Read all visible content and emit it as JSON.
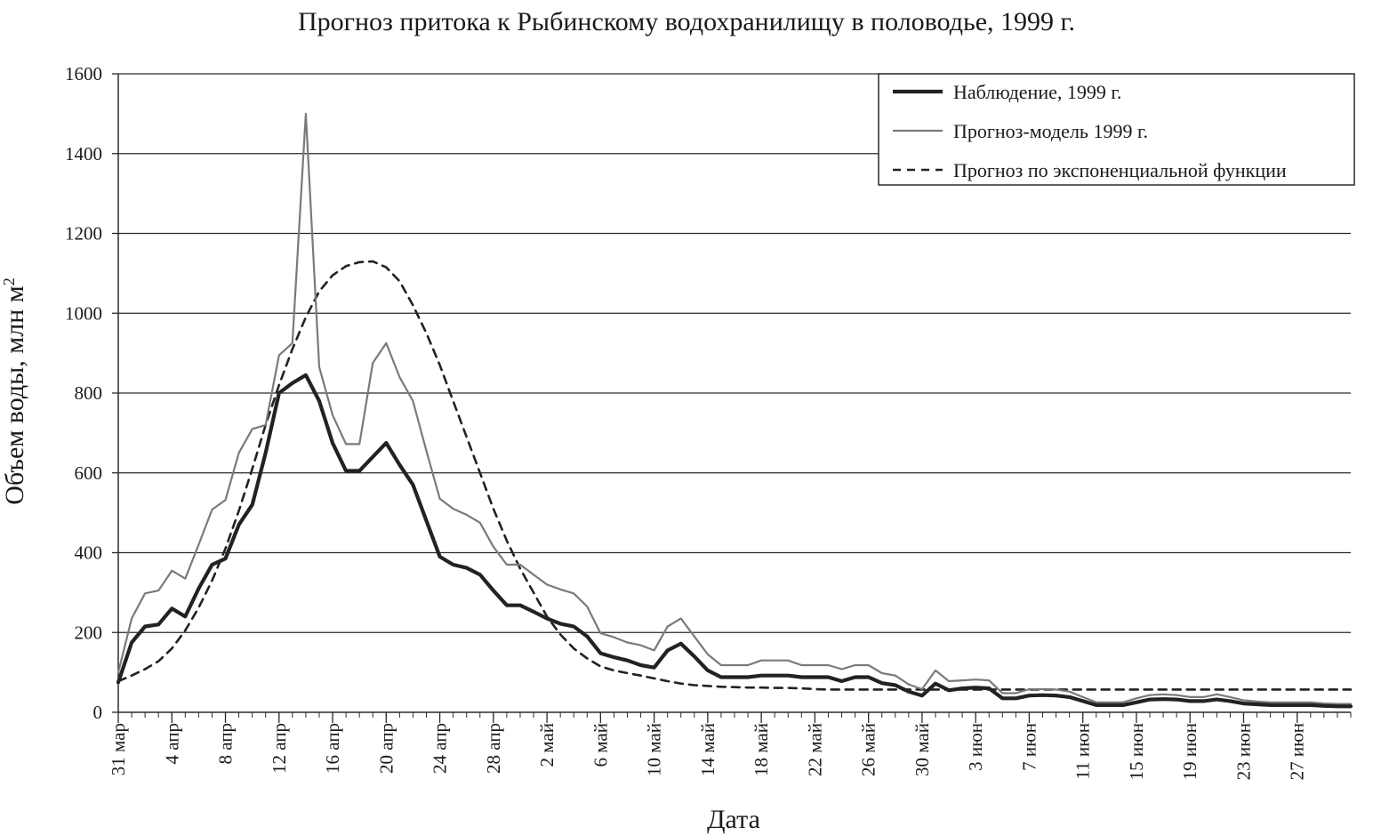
{
  "chart_data": {
    "type": "line",
    "title": "Прогноз притока к Рыбинскому водохранилищу в половодье, 1999 г.",
    "xlabel": "Дата",
    "ylabel": "Объем воды, млн м",
    "ylabel_superscript": "2",
    "ylim": [
      0,
      1600
    ],
    "yticks": [
      0,
      200,
      400,
      600,
      800,
      1000,
      1200,
      1400,
      1600
    ],
    "x_range_days": [
      0,
      92
    ],
    "x_tick_labels": [
      "31 мар",
      "4 апр",
      "8 апр",
      "12 апр",
      "16 апр",
      "20 апр",
      "24 апр",
      "28 апр",
      "2 май",
      "6 май",
      "10 май",
      "14 май",
      "18 май",
      "22 май",
      "26 май",
      "30 май",
      "3 июн",
      "7 июн",
      "11 июн",
      "15 июн",
      "19 июн",
      "23 июн",
      "27 июн"
    ],
    "x_tick_days": [
      0,
      4,
      8,
      12,
      16,
      20,
      24,
      28,
      32,
      36,
      40,
      44,
      48,
      52,
      56,
      60,
      64,
      68,
      72,
      76,
      80,
      84,
      88
    ],
    "grid": "horizontal",
    "legend_position": "top-right",
    "series": [
      {
        "name": "Наблюдение, 1999 г.",
        "color": "#222222",
        "style": "thick",
        "points": [
          [
            0,
            75
          ],
          [
            1,
            175
          ],
          [
            2,
            215
          ],
          [
            3,
            220
          ],
          [
            4,
            260
          ],
          [
            5,
            240
          ],
          [
            6,
            310
          ],
          [
            7,
            370
          ],
          [
            8,
            385
          ],
          [
            9,
            470
          ],
          [
            10,
            520
          ],
          [
            11,
            650
          ],
          [
            12,
            800
          ],
          [
            13,
            825
          ],
          [
            14,
            845
          ],
          [
            15,
            780
          ],
          [
            16,
            675
          ],
          [
            17,
            605
          ],
          [
            18,
            605
          ],
          [
            19,
            640
          ],
          [
            20,
            675
          ],
          [
            21,
            620
          ],
          [
            22,
            570
          ],
          [
            23,
            480
          ],
          [
            24,
            390
          ],
          [
            25,
            370
          ],
          [
            26,
            362
          ],
          [
            27,
            345
          ],
          [
            28,
            305
          ],
          [
            29,
            268
          ],
          [
            30,
            268
          ],
          [
            31,
            252
          ],
          [
            32,
            235
          ],
          [
            33,
            222
          ],
          [
            34,
            215
          ],
          [
            35,
            190
          ],
          [
            36,
            148
          ],
          [
            37,
            138
          ],
          [
            38,
            130
          ],
          [
            39,
            118
          ],
          [
            40,
            112
          ],
          [
            41,
            155
          ],
          [
            42,
            172
          ],
          [
            43,
            140
          ],
          [
            44,
            105
          ],
          [
            45,
            88
          ],
          [
            46,
            88
          ],
          [
            47,
            88
          ],
          [
            48,
            92
          ],
          [
            49,
            92
          ],
          [
            50,
            92
          ],
          [
            51,
            88
          ],
          [
            52,
            88
          ],
          [
            53,
            88
          ],
          [
            54,
            78
          ],
          [
            55,
            88
          ],
          [
            56,
            88
          ],
          [
            57,
            73
          ],
          [
            58,
            68
          ],
          [
            59,
            52
          ],
          [
            60,
            42
          ],
          [
            61,
            72
          ],
          [
            62,
            55
          ],
          [
            63,
            60
          ],
          [
            64,
            62
          ],
          [
            65,
            60
          ],
          [
            66,
            35
          ],
          [
            67,
            35
          ],
          [
            68,
            42
          ],
          [
            69,
            43
          ],
          [
            70,
            42
          ],
          [
            71,
            38
          ],
          [
            72,
            28
          ],
          [
            73,
            18
          ],
          [
            74,
            18
          ],
          [
            75,
            18
          ],
          [
            76,
            25
          ],
          [
            77,
            32
          ],
          [
            78,
            33
          ],
          [
            79,
            32
          ],
          [
            80,
            28
          ],
          [
            81,
            28
          ],
          [
            82,
            32
          ],
          [
            83,
            28
          ],
          [
            84,
            22
          ],
          [
            85,
            20
          ],
          [
            86,
            18
          ],
          [
            87,
            18
          ],
          [
            88,
            18
          ],
          [
            89,
            18
          ],
          [
            90,
            16
          ],
          [
            91,
            15
          ],
          [
            92,
            15
          ]
        ]
      },
      {
        "name": "Прогноз-модель 1999 г.",
        "color": "#7a7a7a",
        "style": "thin",
        "points": [
          [
            0,
            100
          ],
          [
            1,
            235
          ],
          [
            2,
            298
          ],
          [
            3,
            305
          ],
          [
            4,
            355
          ],
          [
            5,
            335
          ],
          [
            6,
            420
          ],
          [
            7,
            508
          ],
          [
            8,
            532
          ],
          [
            9,
            650
          ],
          [
            10,
            710
          ],
          [
            11,
            720
          ],
          [
            12,
            895
          ],
          [
            13,
            925
          ],
          [
            14,
            1500
          ],
          [
            15,
            865
          ],
          [
            16,
            745
          ],
          [
            17,
            672
          ],
          [
            18,
            672
          ],
          [
            19,
            875
          ],
          [
            20,
            925
          ],
          [
            21,
            840
          ],
          [
            22,
            780
          ],
          [
            23,
            655
          ],
          [
            24,
            535
          ],
          [
            25,
            510
          ],
          [
            26,
            495
          ],
          [
            27,
            475
          ],
          [
            28,
            415
          ],
          [
            29,
            370
          ],
          [
            30,
            370
          ],
          [
            31,
            345
          ],
          [
            32,
            320
          ],
          [
            33,
            308
          ],
          [
            34,
            298
          ],
          [
            35,
            265
          ],
          [
            36,
            198
          ],
          [
            37,
            188
          ],
          [
            38,
            175
          ],
          [
            39,
            168
          ],
          [
            40,
            155
          ],
          [
            41,
            215
          ],
          [
            42,
            235
          ],
          [
            43,
            190
          ],
          [
            44,
            145
          ],
          [
            45,
            118
          ],
          [
            46,
            118
          ],
          [
            47,
            118
          ],
          [
            48,
            130
          ],
          [
            49,
            130
          ],
          [
            50,
            130
          ],
          [
            51,
            118
          ],
          [
            52,
            118
          ],
          [
            53,
            118
          ],
          [
            54,
            108
          ],
          [
            55,
            118
          ],
          [
            56,
            118
          ],
          [
            57,
            98
          ],
          [
            58,
            92
          ],
          [
            59,
            70
          ],
          [
            60,
            58
          ],
          [
            61,
            105
          ],
          [
            62,
            78
          ],
          [
            63,
            80
          ],
          [
            64,
            82
          ],
          [
            65,
            80
          ],
          [
            66,
            48
          ],
          [
            67,
            48
          ],
          [
            68,
            58
          ],
          [
            69,
            58
          ],
          [
            70,
            57
          ],
          [
            71,
            52
          ],
          [
            72,
            38
          ],
          [
            73,
            25
          ],
          [
            74,
            25
          ],
          [
            75,
            25
          ],
          [
            76,
            35
          ],
          [
            77,
            43
          ],
          [
            78,
            45
          ],
          [
            79,
            43
          ],
          [
            80,
            38
          ],
          [
            81,
            38
          ],
          [
            82,
            45
          ],
          [
            83,
            38
          ],
          [
            84,
            30
          ],
          [
            85,
            27
          ],
          [
            86,
            25
          ],
          [
            87,
            25
          ],
          [
            88,
            25
          ],
          [
            89,
            25
          ],
          [
            90,
            22
          ],
          [
            91,
            21
          ],
          [
            92,
            21
          ]
        ]
      },
      {
        "name": "Прогноз по экспоненциальной функции",
        "color": "#222222",
        "style": "dashed",
        "points": [
          [
            0,
            78
          ],
          [
            1,
            92
          ],
          [
            2,
            108
          ],
          [
            3,
            128
          ],
          [
            4,
            160
          ],
          [
            5,
            205
          ],
          [
            6,
            262
          ],
          [
            7,
            330
          ],
          [
            8,
            410
          ],
          [
            9,
            505
          ],
          [
            10,
            610
          ],
          [
            11,
            720
          ],
          [
            12,
            820
          ],
          [
            13,
            910
          ],
          [
            14,
            990
          ],
          [
            15,
            1055
          ],
          [
            16,
            1095
          ],
          [
            17,
            1118
          ],
          [
            18,
            1128
          ],
          [
            19,
            1130
          ],
          [
            20,
            1115
          ],
          [
            21,
            1080
          ],
          [
            22,
            1020
          ],
          [
            23,
            950
          ],
          [
            24,
            870
          ],
          [
            25,
            780
          ],
          [
            26,
            690
          ],
          [
            27,
            600
          ],
          [
            28,
            510
          ],
          [
            29,
            430
          ],
          [
            30,
            360
          ],
          [
            31,
            300
          ],
          [
            32,
            240
          ],
          [
            33,
            195
          ],
          [
            34,
            160
          ],
          [
            35,
            135
          ],
          [
            36,
            115
          ],
          [
            37,
            105
          ],
          [
            38,
            98
          ],
          [
            39,
            92
          ],
          [
            40,
            85
          ],
          [
            41,
            78
          ],
          [
            42,
            72
          ],
          [
            43,
            68
          ],
          [
            44,
            66
          ],
          [
            45,
            64
          ],
          [
            46,
            63
          ],
          [
            47,
            62
          ],
          [
            48,
            62
          ],
          [
            49,
            61
          ],
          [
            50,
            61
          ],
          [
            51,
            60
          ],
          [
            52,
            58
          ],
          [
            53,
            57
          ],
          [
            54,
            57
          ],
          [
            55,
            57
          ],
          [
            56,
            57
          ],
          [
            57,
            57
          ],
          [
            58,
            57
          ],
          [
            59,
            57
          ],
          [
            60,
            57
          ],
          [
            61,
            57
          ],
          [
            62,
            57
          ],
          [
            63,
            57
          ],
          [
            64,
            57
          ],
          [
            65,
            57
          ],
          [
            66,
            57
          ],
          [
            67,
            57
          ],
          [
            68,
            57
          ],
          [
            69,
            57
          ],
          [
            70,
            57
          ],
          [
            71,
            57
          ],
          [
            72,
            57
          ],
          [
            73,
            57
          ],
          [
            74,
            57
          ],
          [
            75,
            57
          ],
          [
            76,
            57
          ],
          [
            77,
            57
          ],
          [
            78,
            57
          ],
          [
            79,
            57
          ],
          [
            80,
            57
          ],
          [
            81,
            57
          ],
          [
            82,
            57
          ],
          [
            83,
            57
          ],
          [
            84,
            57
          ],
          [
            85,
            57
          ],
          [
            86,
            57
          ],
          [
            87,
            57
          ],
          [
            88,
            57
          ],
          [
            89,
            57
          ],
          [
            90,
            57
          ],
          [
            91,
            57
          ],
          [
            92,
            57
          ]
        ]
      }
    ]
  }
}
